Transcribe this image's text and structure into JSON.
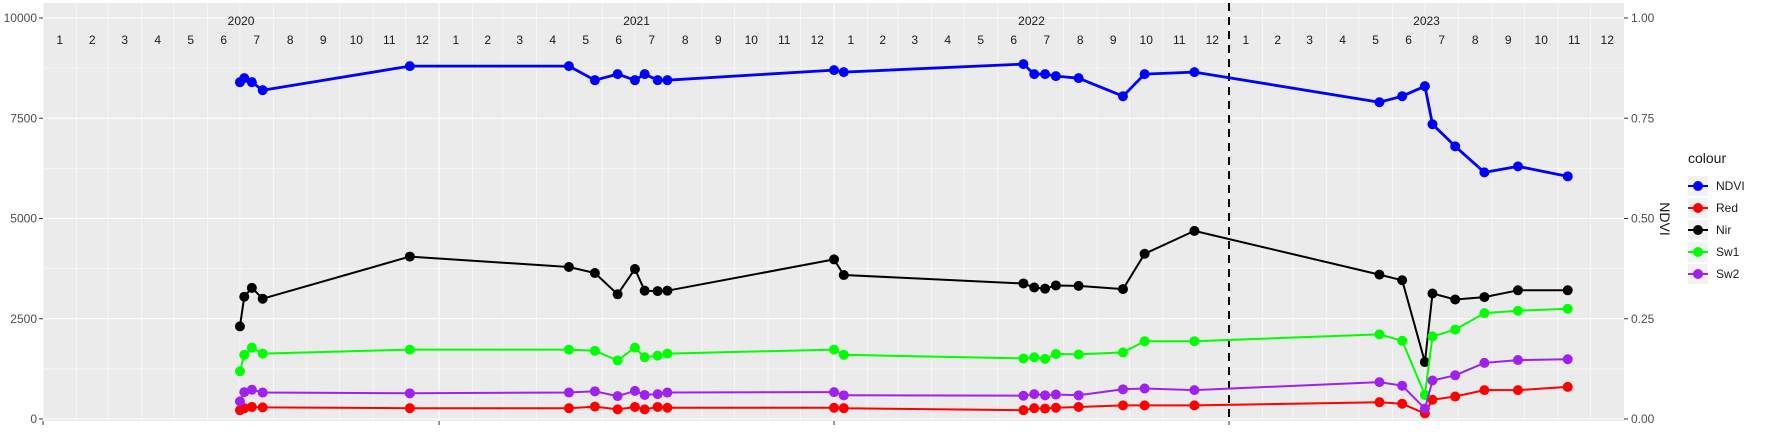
{
  "chart_data": {
    "type": "line",
    "legend": {
      "title": "colour",
      "position": "right"
    },
    "yaxis_left": {
      "range": [
        0,
        10000
      ],
      "ticks": [
        0,
        2500,
        5000,
        7500,
        10000
      ],
      "tick_labels": [
        "0",
        "2500",
        "5000",
        "7500",
        "10000"
      ]
    },
    "yaxis_right": {
      "label": "NDVI",
      "range": [
        0,
        1
      ],
      "ticks": [
        0,
        0.25,
        0.5,
        0.75,
        1
      ],
      "tick_labels": [
        "0.00",
        "0.25",
        "0.50",
        "0.75",
        "1.00"
      ]
    },
    "years": [
      "2020",
      "2021",
      "2022",
      "2023"
    ],
    "month_labels": [
      "1",
      "2",
      "3",
      "4",
      "5",
      "6",
      "7",
      "8",
      "9",
      "10",
      "11",
      "12"
    ],
    "xlim": [
      "2020-01-01",
      "2023-12-31"
    ],
    "grid": true,
    "vline": "2023-01-01",
    "x": [
      "2020-07-01",
      "2020-07-05",
      "2020-07-12",
      "2020-07-22",
      "2020-12-05",
      "2021-05-01",
      "2021-05-25",
      "2021-06-15",
      "2021-07-01",
      "2021-07-10",
      "2021-07-22",
      "2021-07-31",
      "2022-01-01",
      "2022-01-10",
      "2022-06-25",
      "2022-07-05",
      "2022-07-15",
      "2022-07-25",
      "2022-08-15",
      "2022-09-25",
      "2022-10-15",
      "2022-11-30",
      "2023-05-20",
      "2023-06-10",
      "2023-07-01",
      "2023-07-08",
      "2023-07-29",
      "2023-08-25",
      "2023-09-25",
      "2023-11-10"
    ],
    "series": [
      {
        "name": "NDVI",
        "color": "#0000ff",
        "axis": "right",
        "values": [
          0.84,
          0.85,
          0.84,
          0.82,
          0.88,
          0.88,
          0.845,
          0.86,
          0.845,
          0.86,
          0.845,
          0.845,
          0.87,
          0.865,
          0.885,
          0.86,
          0.86,
          0.855,
          0.85,
          0.805,
          0.86,
          0.865,
          0.79,
          0.805,
          0.83,
          0.735,
          0.68,
          0.615,
          0.63,
          0.605
        ]
      },
      {
        "name": "Red",
        "color": "#ff0000",
        "axis": "left",
        "values": [
          220,
          270,
          300,
          290,
          270,
          270,
          310,
          240,
          300,
          240,
          300,
          280,
          280,
          270,
          220,
          270,
          260,
          280,
          300,
          340,
          340,
          340,
          420,
          380,
          140,
          480,
          560,
          720,
          720,
          800
        ]
      },
      {
        "name": "Nir",
        "color": "#000000",
        "axis": "left",
        "values": [
          2310,
          3050,
          3270,
          3000,
          4050,
          3790,
          3640,
          3110,
          3740,
          3200,
          3190,
          3200,
          3980,
          3590,
          3380,
          3280,
          3250,
          3330,
          3320,
          3240,
          4120,
          4690,
          3600,
          3460,
          1420,
          3130,
          2980,
          3040,
          3210,
          3210
        ]
      },
      {
        "name": "Sw1",
        "color": "#00ff00",
        "axis": "left",
        "values": [
          1190,
          1600,
          1780,
          1630,
          1730,
          1730,
          1700,
          1460,
          1780,
          1540,
          1580,
          1630,
          1730,
          1600,
          1510,
          1540,
          1500,
          1620,
          1610,
          1660,
          1940,
          1940,
          2110,
          1950,
          600,
          2060,
          2230,
          2640,
          2700,
          2750
        ]
      },
      {
        "name": "Sw2",
        "color": "#a020f0",
        "axis": "left",
        "values": [
          440,
          670,
          730,
          660,
          640,
          660,
          690,
          570,
          700,
          600,
          620,
          660,
          670,
          590,
          580,
          620,
          590,
          610,
          590,
          740,
          760,
          720,
          920,
          830,
          260,
          960,
          1090,
          1400,
          1470,
          1490
        ]
      }
    ]
  }
}
